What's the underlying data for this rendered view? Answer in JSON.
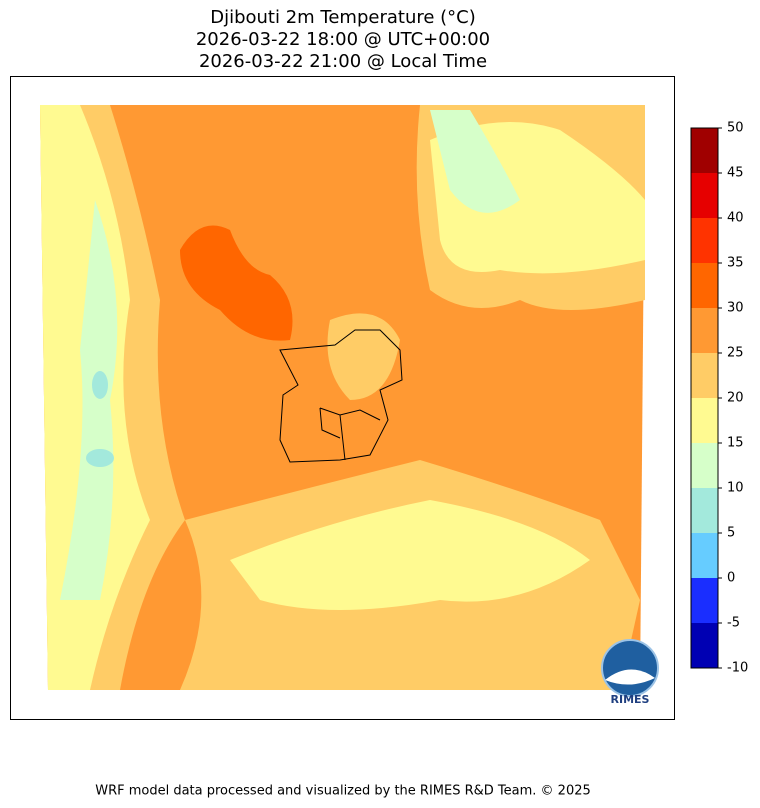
{
  "title": [
    "Djibouti 2m Temperature (°C)",
    "2026-03-22 18:00 @ UTC+00:00",
    "2026-03-22 21:00 @ Local Time"
  ],
  "colorbar": {
    "ticks": [
      -10,
      -5,
      0,
      5,
      10,
      15,
      20,
      25,
      30,
      35,
      40,
      45,
      50
    ],
    "colors": [
      "#0000b3",
      "#1a2eff",
      "#66ccff",
      "#a3e9dc",
      "#d6ffc9",
      "#fffa91",
      "#ffcc66",
      "#ff9933",
      "#ff6600",
      "#ff3300",
      "#e60000",
      "#a00000"
    ]
  },
  "logo": "RIMES",
  "footer": "WRF model data processed and visualized by the RIMES R&D Team. © 2025"
}
